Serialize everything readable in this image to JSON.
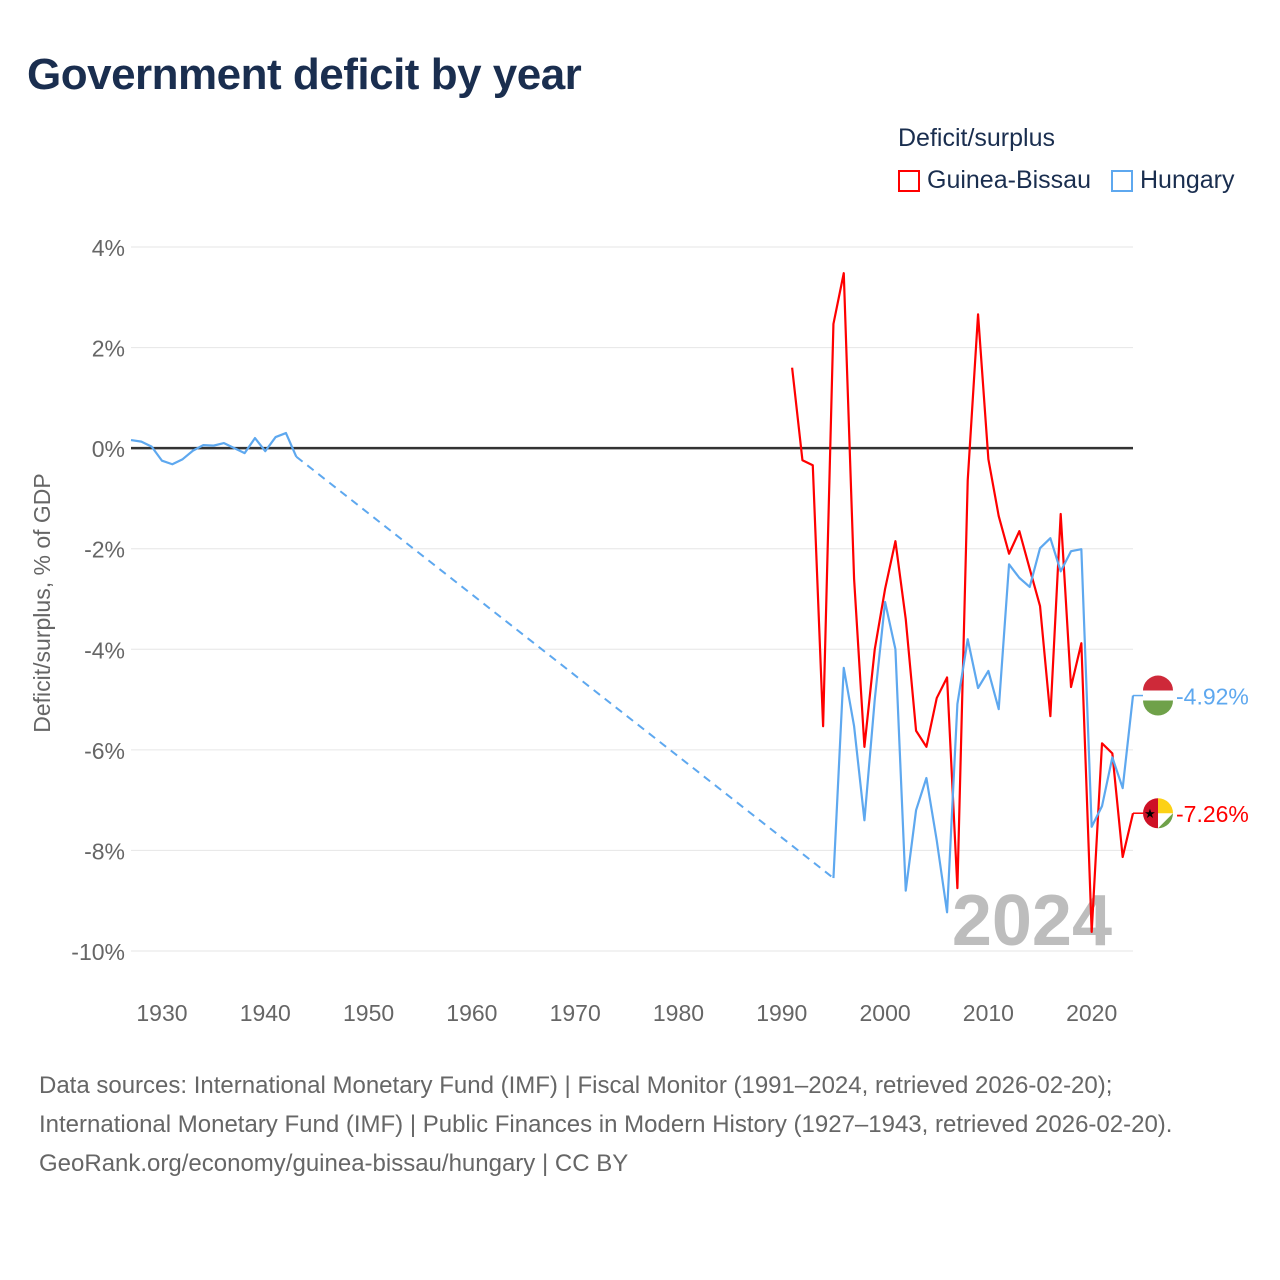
{
  "title": "Government deficit by year",
  "legend": {
    "title": "Deficit/surplus",
    "items": [
      {
        "name": "Guinea-Bissau",
        "color": "#ff0000"
      },
      {
        "name": "Hungary",
        "color": "#5ea8ef"
      }
    ]
  },
  "footer": {
    "sources": "Data sources: International Monetary Fund (IMF) | Fiscal Monitor (1991–2024, retrieved 2026-02-20); International Monetary Fund (IMF) | Public Finances in Modern History (1927–1943, retrieved 2026-02-20).",
    "credit": "GeoRank.org/economy/guinea-bissau/hungary | CC BY"
  },
  "chart_data": {
    "type": "line",
    "title": "Government deficit by year",
    "xlabel": "",
    "ylabel": "Deficit/surplus, % of GDP",
    "xlim": [
      1927,
      2024
    ],
    "ylim": [
      -10,
      4
    ],
    "yticks": [
      4,
      2,
      0,
      -2,
      -4,
      -6,
      -8,
      -10
    ],
    "ytick_labels": [
      "4%",
      "2%",
      "0%",
      "-2%",
      "-4%",
      "-6%",
      "-8%",
      "-10%"
    ],
    "xticks": [
      1930,
      1940,
      1950,
      1960,
      1970,
      1980,
      1990,
      2000,
      2010,
      2020
    ],
    "xtick_labels": [
      "1930",
      "1940",
      "1950",
      "1960",
      "1970",
      "1980",
      "1990",
      "2000",
      "2010",
      "2020"
    ],
    "year_label": "2024",
    "grid": true,
    "legend_position": "top-right",
    "series": [
      {
        "name": "Guinea-Bissau",
        "color": "#ff0000",
        "end_label": "-7.26%",
        "points": [
          [
            1991,
            1.6
          ],
          [
            1992,
            -0.24
          ],
          [
            1993,
            -0.34
          ],
          [
            1994,
            -5.53
          ],
          [
            1995,
            2.47
          ],
          [
            1996,
            3.48
          ],
          [
            1997,
            -2.6
          ],
          [
            1998,
            -5.94
          ],
          [
            1999,
            -4.0
          ],
          [
            2000,
            -2.8
          ],
          [
            2001,
            -1.85
          ],
          [
            2002,
            -3.4
          ],
          [
            2003,
            -5.62
          ],
          [
            2004,
            -5.94
          ],
          [
            2005,
            -4.97
          ],
          [
            2006,
            -4.56
          ],
          [
            2007,
            -8.75
          ],
          [
            2008,
            -0.64
          ],
          [
            2009,
            2.66
          ],
          [
            2010,
            -0.22
          ],
          [
            2011,
            -1.35
          ],
          [
            2012,
            -2.1
          ],
          [
            2013,
            -1.65
          ],
          [
            2014,
            -2.4
          ],
          [
            2015,
            -3.14
          ],
          [
            2016,
            -5.33
          ],
          [
            2017,
            -1.31
          ],
          [
            2018,
            -4.75
          ],
          [
            2019,
            -3.88
          ],
          [
            2020,
            -9.62
          ],
          [
            2021,
            -5.87
          ],
          [
            2022,
            -6.07
          ],
          [
            2023,
            -8.13
          ],
          [
            2024,
            -7.26
          ]
        ]
      },
      {
        "name": "Hungary",
        "color": "#5ea8ef",
        "end_label": "-4.92%",
        "gap": [
          1943,
          1995
        ],
        "points": [
          [
            1927,
            0.16
          ],
          [
            1928,
            0.13
          ],
          [
            1929,
            0.03
          ],
          [
            1930,
            -0.25
          ],
          [
            1931,
            -0.32
          ],
          [
            1932,
            -0.22
          ],
          [
            1933,
            -0.05
          ],
          [
            1934,
            0.06
          ],
          [
            1935,
            0.05
          ],
          [
            1936,
            0.1
          ],
          [
            1937,
            0.0
          ],
          [
            1938,
            -0.1
          ],
          [
            1939,
            0.2
          ],
          [
            1940,
            -0.06
          ],
          [
            1941,
            0.22
          ],
          [
            1942,
            0.3
          ],
          [
            1943,
            -0.17
          ],
          [
            1995,
            -8.55
          ],
          [
            1996,
            -4.37
          ],
          [
            1997,
            -5.53
          ],
          [
            1998,
            -7.4
          ],
          [
            1999,
            -5.0
          ],
          [
            2000,
            -3.06
          ],
          [
            2001,
            -4.0
          ],
          [
            2002,
            -8.8
          ],
          [
            2003,
            -7.2
          ],
          [
            2004,
            -6.56
          ],
          [
            2005,
            -7.8
          ],
          [
            2006,
            -9.23
          ],
          [
            2007,
            -5.09
          ],
          [
            2008,
            -3.8
          ],
          [
            2009,
            -4.77
          ],
          [
            2010,
            -4.43
          ],
          [
            2011,
            -5.19
          ],
          [
            2012,
            -2.31
          ],
          [
            2013,
            -2.58
          ],
          [
            2014,
            -2.76
          ],
          [
            2015,
            -1.99
          ],
          [
            2016,
            -1.79
          ],
          [
            2017,
            -2.45
          ],
          [
            2018,
            -2.05
          ],
          [
            2019,
            -2.01
          ],
          [
            2020,
            -7.53
          ],
          [
            2021,
            -7.12
          ],
          [
            2022,
            -6.15
          ],
          [
            2023,
            -6.76
          ],
          [
            2024,
            -4.92
          ]
        ]
      }
    ]
  }
}
